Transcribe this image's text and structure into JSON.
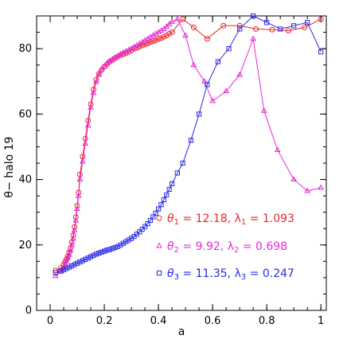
{
  "chart_data": {
    "type": "line",
    "xlabel": "a",
    "ylabel": "θ− halo 19",
    "xlim": [
      -0.05,
      1.02
    ],
    "ylim": [
      0,
      90
    ],
    "x_ticks": [
      0,
      0.2,
      0.4,
      0.6,
      0.8,
      1
    ],
    "x_tick_labels": [
      "0",
      "0.2",
      "0.4",
      "0.6",
      "0.8",
      "1"
    ],
    "y_ticks": [
      0,
      20,
      40,
      60,
      80
    ],
    "y_tick_labels": [
      "0",
      "20",
      "40",
      "60",
      "80"
    ],
    "grid": false,
    "legend_placement": "bottom-right",
    "series": [
      {
        "marker": "circle",
        "color": "#e8262a",
        "legend_entry": {
          "theta_sub": "1",
          "theta_value": "12.18",
          "lambda_sub": "1",
          "lambda_value": "1.093"
        },
        "x": [
          0.02,
          0.04,
          0.05,
          0.055,
          0.06,
          0.065,
          0.07,
          0.075,
          0.08,
          0.085,
          0.09,
          0.095,
          0.1,
          0.105,
          0.11,
          0.12,
          0.13,
          0.14,
          0.15,
          0.16,
          0.17,
          0.18,
          0.19,
          0.2,
          0.21,
          0.22,
          0.23,
          0.24,
          0.25,
          0.26,
          0.27,
          0.28,
          0.29,
          0.3,
          0.31,
          0.32,
          0.33,
          0.34,
          0.35,
          0.36,
          0.37,
          0.38,
          0.39,
          0.4,
          0.41,
          0.42,
          0.43,
          0.44,
          0.45,
          0.49,
          0.53,
          0.58,
          0.64,
          0.7,
          0.76,
          0.82,
          0.88,
          0.94,
          1.0
        ],
        "y": [
          12.2,
          13,
          14,
          14.8,
          15.6,
          16.5,
          17.7,
          19,
          20.8,
          23,
          25.5,
          28.5,
          32,
          36,
          41.5,
          47,
          52.5,
          58,
          63,
          67.5,
          70.5,
          72.3,
          73.5,
          74.5,
          75.2,
          76,
          76.5,
          77,
          77.5,
          78,
          78.3,
          78.6,
          79,
          79.5,
          80,
          80.2,
          80.6,
          81,
          81.3,
          81.6,
          82,
          82.3,
          82.5,
          83,
          83.2,
          83.6,
          84,
          84.6,
          85,
          89,
          86.5,
          83,
          87,
          87,
          86,
          85.8,
          85.5,
          86.5,
          89
        ]
      },
      {
        "marker": "triangle",
        "color": "#e62ad6",
        "legend_entry": {
          "theta_sub": "2",
          "theta_value": "9.92",
          "lambda_sub": "2",
          "lambda_value": "0.698"
        },
        "x": [
          0.02,
          0.04,
          0.05,
          0.055,
          0.06,
          0.065,
          0.07,
          0.075,
          0.08,
          0.085,
          0.09,
          0.095,
          0.1,
          0.105,
          0.11,
          0.12,
          0.13,
          0.14,
          0.15,
          0.16,
          0.17,
          0.18,
          0.19,
          0.2,
          0.21,
          0.22,
          0.23,
          0.24,
          0.25,
          0.26,
          0.27,
          0.28,
          0.29,
          0.3,
          0.31,
          0.32,
          0.33,
          0.34,
          0.35,
          0.36,
          0.37,
          0.38,
          0.39,
          0.4,
          0.41,
          0.42,
          0.43,
          0.44,
          0.45,
          0.47,
          0.5,
          0.53,
          0.57,
          0.6,
          0.65,
          0.7,
          0.75,
          0.79,
          0.84,
          0.9,
          0.95,
          1.0
        ],
        "y": [
          10.5,
          12,
          13.2,
          14,
          15,
          16,
          17,
          18.3,
          20,
          22,
          24.5,
          27.5,
          31,
          35,
          40,
          45.5,
          51,
          56.5,
          62,
          66.5,
          69.8,
          72,
          73.5,
          74.5,
          75.5,
          76.2,
          76.8,
          77.3,
          77.8,
          78.3,
          78.8,
          79.2,
          79.6,
          80,
          80.5,
          81,
          81.5,
          82,
          82.5,
          83,
          83.5,
          84,
          84.5,
          85,
          85.5,
          86,
          86.7,
          87.5,
          88.2,
          89,
          84,
          75,
          70,
          64,
          67,
          72,
          83,
          61,
          49,
          40,
          36.5,
          37.5
        ]
      },
      {
        "marker": "square",
        "color": "#2a2ae8",
        "legend_entry": {
          "theta_sub": "3",
          "theta_value": "11.35",
          "lambda_sub": "3",
          "lambda_value": "0.247"
        },
        "x": [
          0.02,
          0.04,
          0.05,
          0.06,
          0.07,
          0.08,
          0.09,
          0.1,
          0.11,
          0.12,
          0.13,
          0.14,
          0.15,
          0.16,
          0.17,
          0.18,
          0.19,
          0.2,
          0.21,
          0.22,
          0.23,
          0.24,
          0.25,
          0.26,
          0.27,
          0.28,
          0.29,
          0.3,
          0.31,
          0.32,
          0.33,
          0.34,
          0.35,
          0.36,
          0.37,
          0.38,
          0.39,
          0.4,
          0.41,
          0.42,
          0.43,
          0.44,
          0.45,
          0.47,
          0.49,
          0.52,
          0.55,
          0.58,
          0.62,
          0.66,
          0.7,
          0.75,
          0.8,
          0.85,
          0.9,
          0.95,
          1.0
        ],
        "y": [
          11.5,
          12,
          12.4,
          12.8,
          13.2,
          13.6,
          14,
          14.4,
          14.8,
          15.2,
          15.6,
          16,
          16.4,
          16.8,
          17.2,
          17.5,
          17.8,
          18.1,
          18.4,
          18.6,
          18.9,
          19.2,
          19.5,
          20,
          20.5,
          21,
          21.5,
          22,
          22.6,
          23.3,
          24,
          24.8,
          25.6,
          26.5,
          27.5,
          28.6,
          29.7,
          31,
          32.3,
          33.8,
          35.3,
          37,
          38.7,
          42,
          45,
          52,
          60,
          69,
          76,
          80,
          86,
          90,
          88,
          86,
          87,
          88,
          79
        ]
      }
    ]
  }
}
